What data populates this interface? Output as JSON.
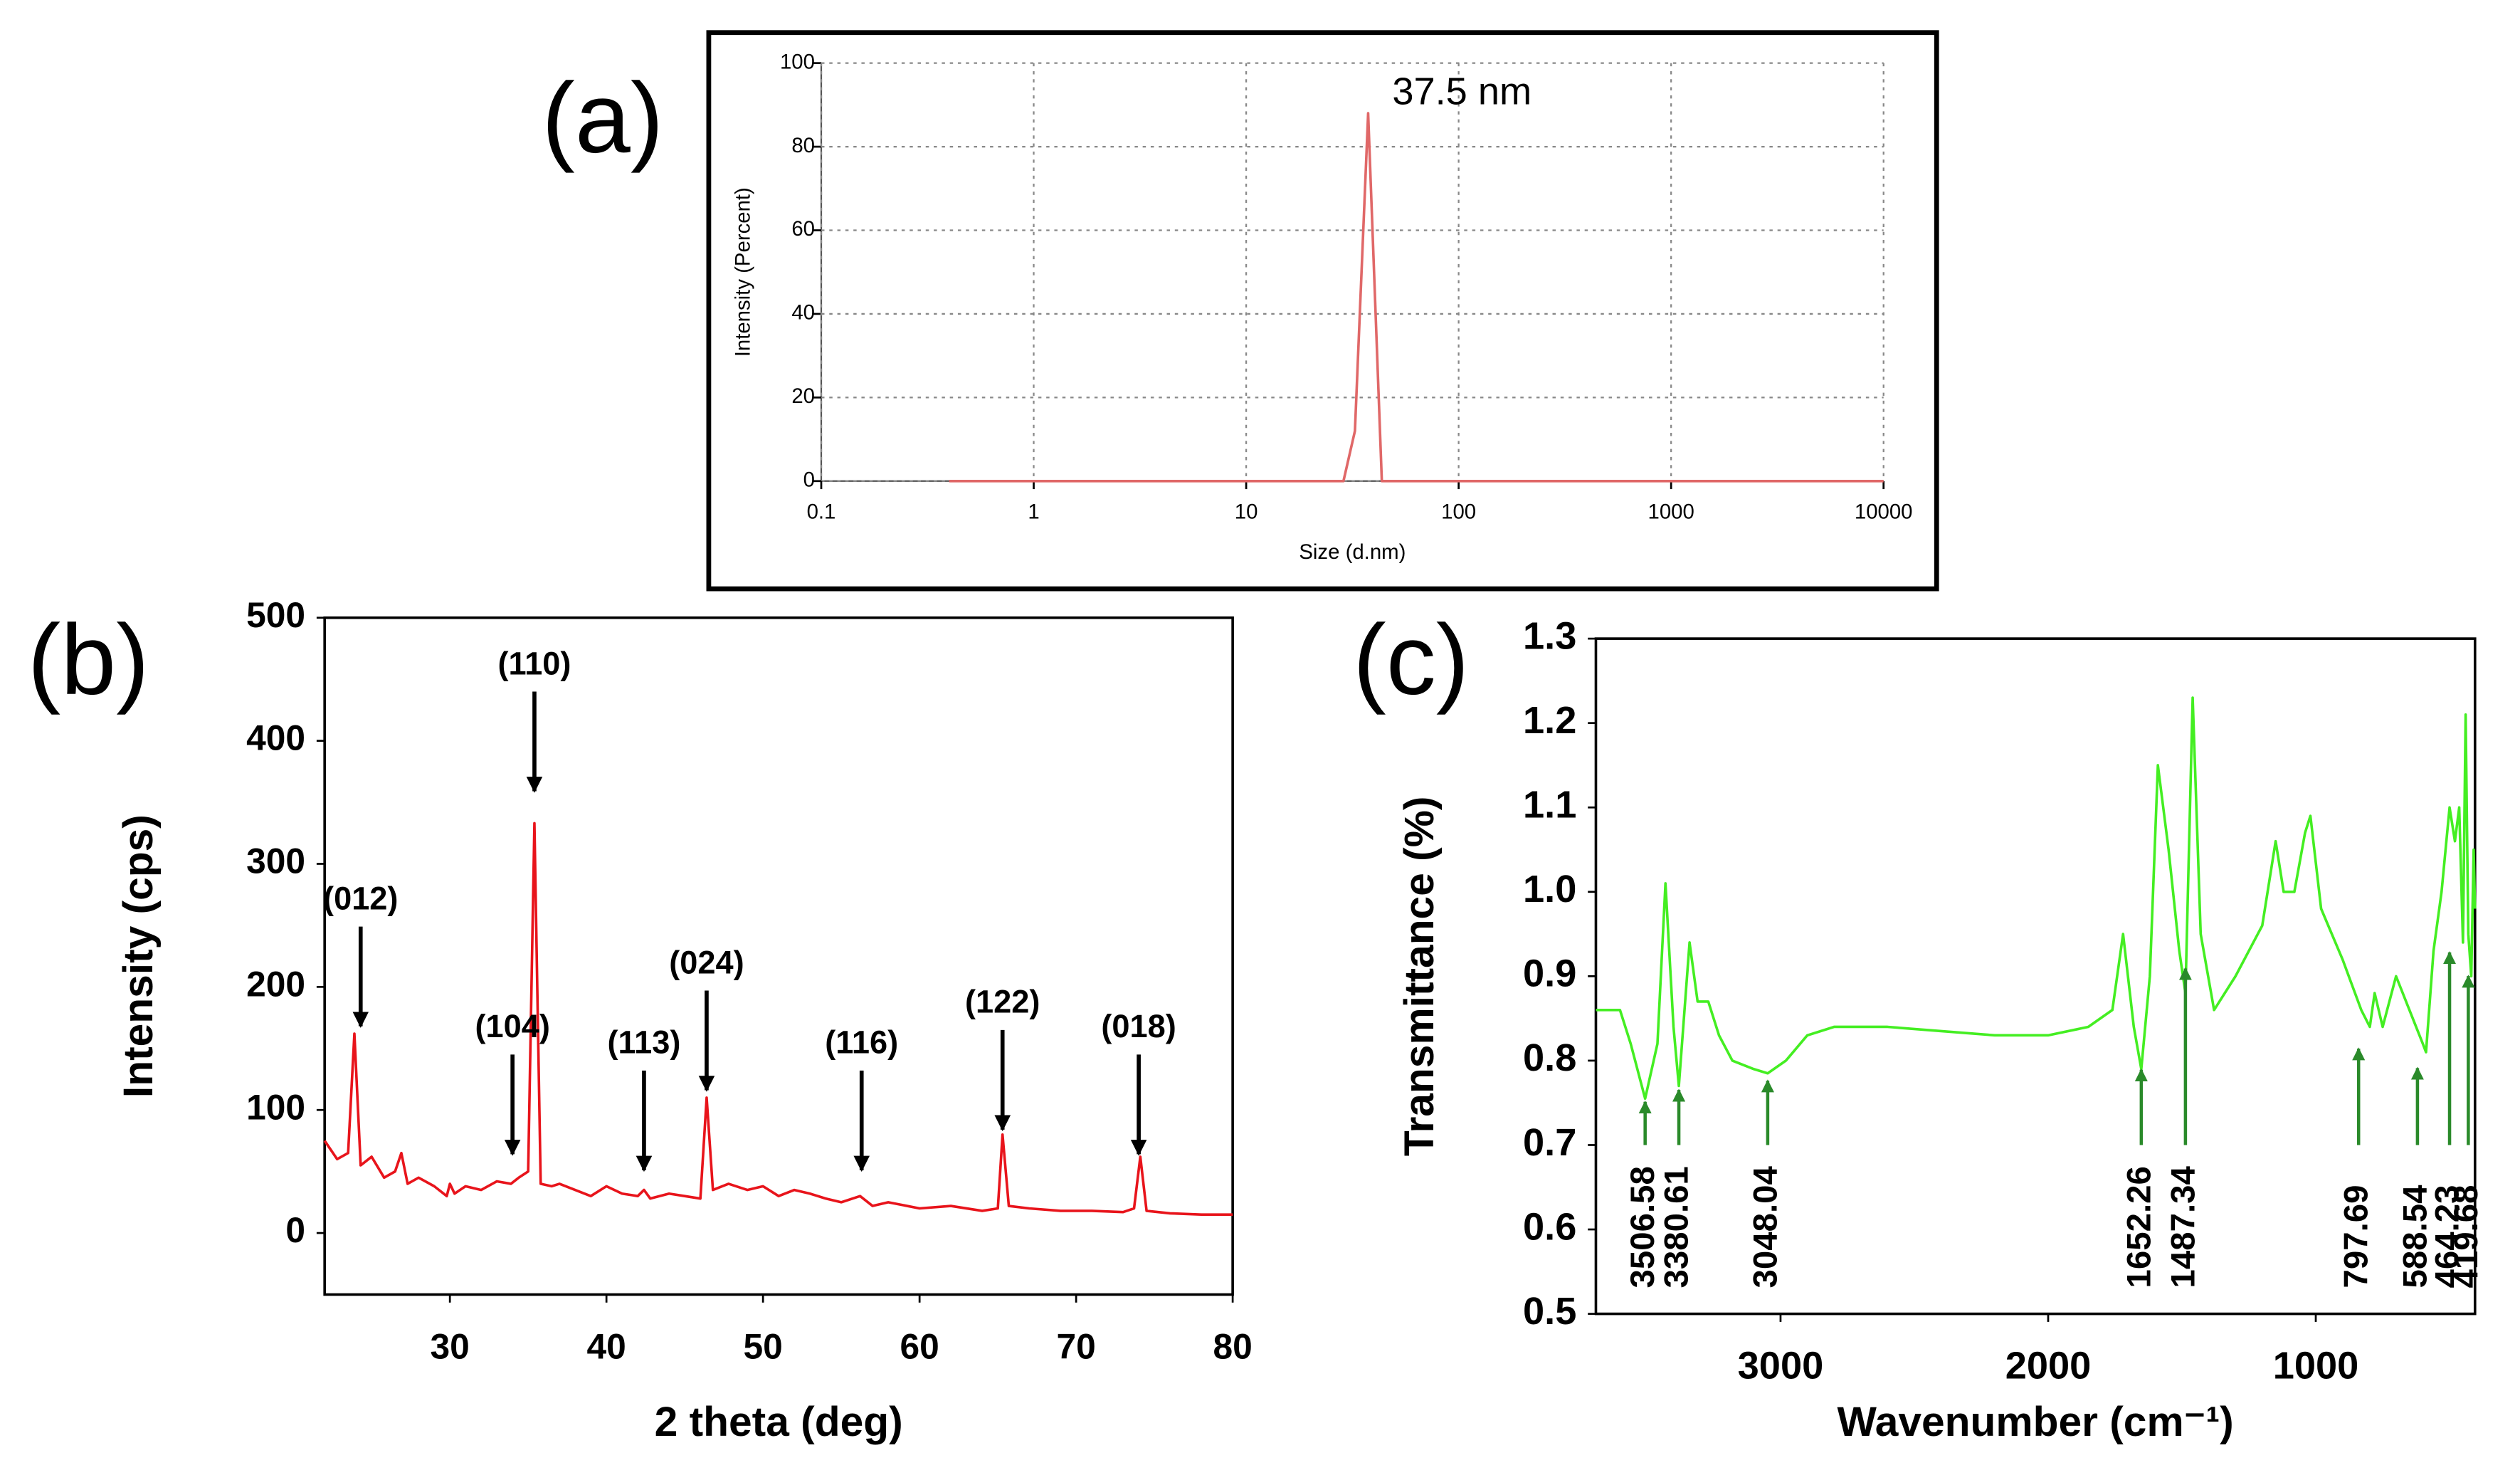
{
  "chart_data": [
    {
      "type": "line",
      "panel_label": "(a)",
      "xlabel": "Size (d.nm)",
      "ylabel": "Intensity (Percent)",
      "x": [
        0.4,
        1,
        10,
        28.7,
        32.5,
        37.5,
        43.5,
        100,
        1000,
        10000
      ],
      "values": [
        0,
        0,
        0,
        0,
        12,
        88,
        0,
        0,
        0,
        0
      ],
      "color": "#e06868",
      "xlog": true,
      "grid": true,
      "xlim": [
        0.1,
        10000
      ],
      "xticks": [
        0.1,
        1,
        10,
        100,
        1000,
        10000
      ],
      "ylim": [
        0,
        100
      ],
      "yticks": [
        0,
        20,
        40,
        60,
        80,
        100
      ],
      "annotations": [
        {
          "text": "37.5 nm",
          "x": 37.5,
          "y": 88
        }
      ]
    },
    {
      "type": "line",
      "panel_label": "(b)",
      "xlabel": "2 theta (deg)",
      "ylabel": "Intensity (cps)",
      "x": [
        22,
        22.8,
        23.5,
        23.9,
        24.3,
        25,
        25.8,
        26.5,
        26.9,
        27.3,
        28,
        29,
        29.8,
        30,
        30.3,
        31,
        32,
        33,
        33.9,
        34.4,
        35,
        35.4,
        35.8,
        36.5,
        37,
        38,
        39,
        40,
        41,
        42,
        42.4,
        42.8,
        44,
        45,
        46,
        46.4,
        46.8,
        47.8,
        49,
        50,
        51,
        52,
        53,
        54,
        55,
        56.2,
        57,
        58,
        60,
        62,
        64,
        65,
        65.3,
        65.7,
        67,
        69,
        71,
        73,
        73.7,
        74.1,
        74.5,
        76,
        78,
        80
      ],
      "values": [
        75,
        60,
        65,
        162,
        55,
        62,
        45,
        50,
        65,
        40,
        45,
        38,
        30,
        40,
        32,
        38,
        35,
        42,
        40,
        45,
        50,
        333,
        40,
        38,
        40,
        35,
        30,
        38,
        32,
        30,
        35,
        28,
        32,
        30,
        28,
        110,
        35,
        40,
        35,
        38,
        30,
        35,
        32,
        28,
        25,
        30,
        22,
        25,
        20,
        22,
        18,
        20,
        80,
        22,
        20,
        18,
        18,
        17,
        20,
        62,
        18,
        16,
        15,
        15
      ],
      "color": "#e8141b",
      "grid": false,
      "annotation_color": "#000000",
      "xlim": [
        22,
        80
      ],
      "xticks": [
        30,
        40,
        50,
        60,
        70,
        80
      ],
      "ylim": [
        -50,
        500
      ],
      "yticks": [
        0,
        100,
        200,
        300,
        400,
        500
      ],
      "annotations": [
        {
          "text": "(012)",
          "x": 24.3,
          "y": 168
        },
        {
          "text": "(104)",
          "x": 34,
          "y": 64
        },
        {
          "text": "(110)",
          "x": 35.4,
          "y": 359
        },
        {
          "text": "(113)",
          "x": 42.4,
          "y": 51
        },
        {
          "text": "(024)",
          "x": 46.4,
          "y": 116
        },
        {
          "text": "(116)",
          "x": 56.3,
          "y": 51
        },
        {
          "text": "(122)",
          "x": 65.3,
          "y": 84
        },
        {
          "text": "(018)",
          "x": 74,
          "y": 64
        }
      ]
    },
    {
      "type": "line",
      "panel_label": "(c)",
      "xlabel": "Wavenumber (cm⁻¹)",
      "ylabel": "Transmittance (%)",
      "x": [
        3690,
        3600,
        3560,
        3506,
        3460,
        3430,
        3400,
        3380,
        3340,
        3310,
        3270,
        3230,
        3180,
        3100,
        3048,
        2980,
        2900,
        2800,
        2600,
        2400,
        2200,
        2000,
        1850,
        1760,
        1720,
        1680,
        1652,
        1620,
        1590,
        1550,
        1510,
        1487,
        1460,
        1430,
        1380,
        1300,
        1200,
        1150,
        1120,
        1080,
        1040,
        1020,
        980,
        900,
        830,
        798,
        780,
        750,
        700,
        650,
        600,
        588,
        560,
        530,
        500,
        480,
        464,
        450,
        440,
        430,
        419,
        410,
        405
      ],
      "values": [
        0.86,
        0.86,
        0.82,
        0.755,
        0.82,
        1.01,
        0.84,
        0.77,
        0.94,
        0.87,
        0.87,
        0.83,
        0.8,
        0.79,
        0.785,
        0.8,
        0.83,
        0.84,
        0.84,
        0.835,
        0.83,
        0.83,
        0.84,
        0.86,
        0.95,
        0.84,
        0.79,
        0.9,
        1.15,
        1.05,
        0.93,
        0.88,
        1.23,
        0.95,
        0.86,
        0.9,
        0.96,
        1.06,
        1.0,
        1.0,
        1.07,
        1.09,
        0.98,
        0.92,
        0.86,
        0.84,
        0.88,
        0.84,
        0.9,
        0.86,
        0.82,
        0.81,
        0.93,
        1.0,
        1.1,
        1.06,
        1.1,
        0.94,
        1.21,
        0.95,
        0.9,
        1.05,
        0.98
      ],
      "color": "#44ee22",
      "grid": false,
      "annotation_color": "#2a8a2a",
      "xlim": [
        3690,
        405
      ],
      "xticks": [
        3000,
        2000,
        1000
      ],
      "ylim": [
        0.5,
        1.3
      ],
      "yticks": [
        0.5,
        0.6,
        0.7,
        0.8,
        0.9,
        {
          "value": 1.0,
          "label": "1.0"
        },
        1.1,
        1.2,
        1.3
      ],
      "annotations": [
        {
          "text": "3506.58",
          "x": 3506,
          "y": 0.755
        },
        {
          "text": "3380.61",
          "x": 3380,
          "y": 0.769
        },
        {
          "text": "3048.04",
          "x": 3048,
          "y": 0.78
        },
        {
          "text": "1652.26",
          "x": 1652,
          "y": 0.793
        },
        {
          "text": "1487.34",
          "x": 1487,
          "y": 0.913
        },
        {
          "text": "797.69",
          "x": 840,
          "y": 0.818
        },
        {
          "text": "588.54",
          "x": 620,
          "y": 0.795
        },
        {
          "text": "464.23",
          "x": 500,
          "y": 0.932
        },
        {
          "text": "419.68",
          "x": 430,
          "y": 0.904
        }
      ]
    }
  ]
}
